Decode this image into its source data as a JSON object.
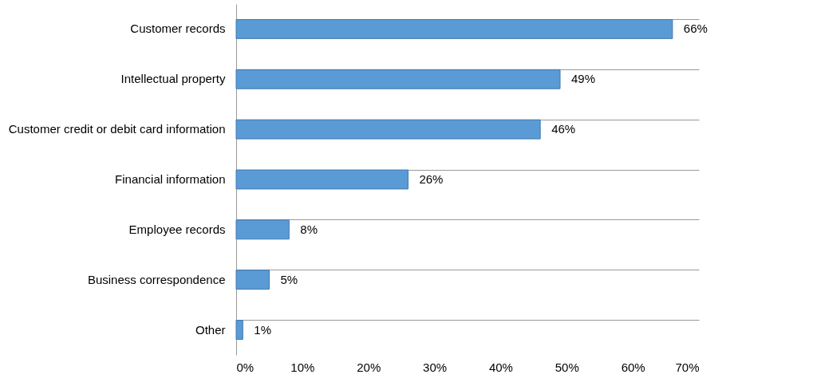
{
  "chart_data": {
    "type": "bar",
    "orientation": "horizontal",
    "categories": [
      "Customer records",
      "Intellectual property",
      "Customer credit or debit card information",
      "Financial information",
      "Employee records",
      "Business correspondence",
      "Other"
    ],
    "values": [
      66,
      49,
      46,
      26,
      8,
      5,
      1
    ],
    "value_labels": [
      "66%",
      "49%",
      "46%",
      "26%",
      "8%",
      "5%",
      "1%"
    ],
    "color": "#5b9bd5",
    "xlim": [
      0,
      70
    ],
    "xticks": [
      {
        "value": 0,
        "label": "0%"
      },
      {
        "value": 10,
        "label": "10%"
      },
      {
        "value": 20,
        "label": "20%"
      },
      {
        "value": 30,
        "label": "30%"
      },
      {
        "value": 40,
        "label": "40%"
      },
      {
        "value": 50,
        "label": "50%"
      },
      {
        "value": 60,
        "label": "60%"
      },
      {
        "value": 70,
        "label": "70%"
      }
    ],
    "grid": "y"
  }
}
